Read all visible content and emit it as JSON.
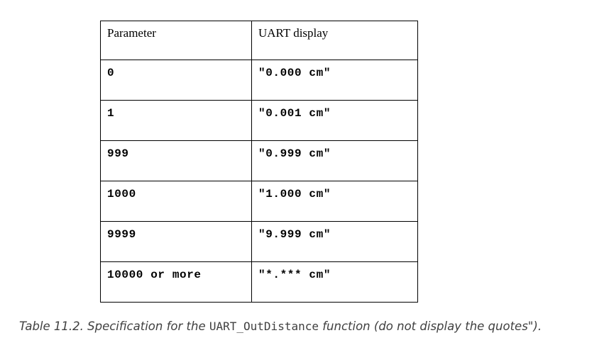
{
  "table": {
    "headers": [
      "Parameter",
      "UART display"
    ],
    "rows": [
      [
        "0",
        "\"0.000 cm\""
      ],
      [
        "1",
        "\"0.001 cm\""
      ],
      [
        "999",
        "\"0.999 cm\""
      ],
      [
        "1000",
        "\"1.000 cm\""
      ],
      [
        "9999",
        "\"9.999 cm\""
      ],
      [
        "10000 or more",
        "\"*.*** cm\""
      ]
    ]
  },
  "caption": {
    "prefix": "Table 11.2. Specification for the",
    "code": "UART_OutDistance",
    "suffix": "function (do not display the quotes\")."
  }
}
